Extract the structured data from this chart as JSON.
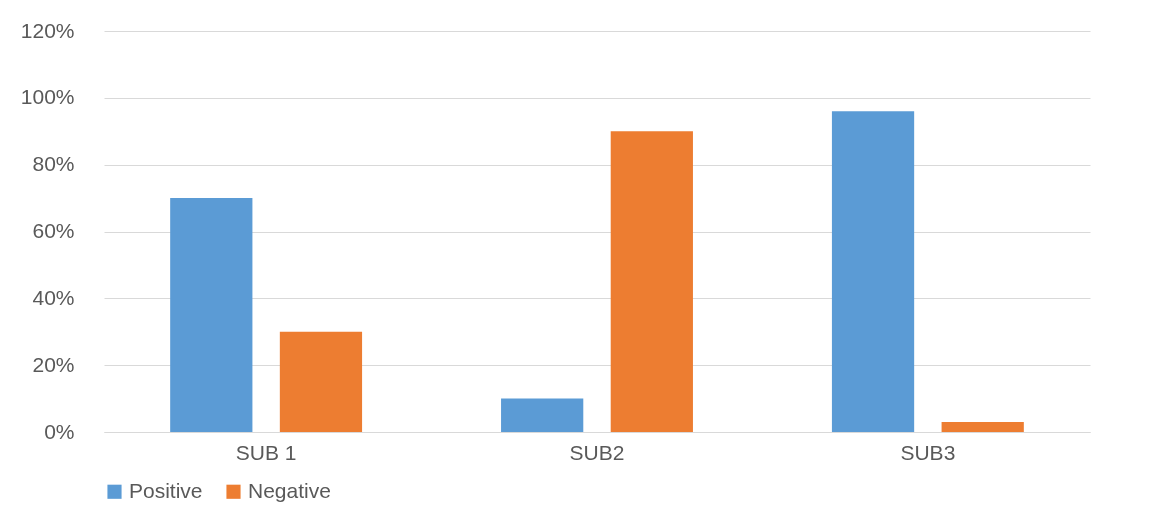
{
  "chart_data": {
    "type": "bar",
    "categories": [
      "SUB 1",
      "SUB2",
      "SUB3"
    ],
    "series": [
      {
        "name": "Positive",
        "color": "#5b9bd5",
        "values": [
          70,
          10,
          96
        ]
      },
      {
        "name": "Negative",
        "color": "#ed7d31",
        "values": [
          30,
          90,
          3
        ]
      }
    ],
    "ylim": [
      0,
      120
    ],
    "yticks": [
      {
        "value": 0,
        "label": "0%"
      },
      {
        "value": 20,
        "label": "20%"
      },
      {
        "value": 40,
        "label": "40%"
      },
      {
        "value": 60,
        "label": "60%"
      },
      {
        "value": 80,
        "label": "80%"
      },
      {
        "value": 100,
        "label": "100%"
      },
      {
        "value": 120,
        "label": "120%"
      }
    ],
    "grid": "y",
    "legend": "bottom"
  }
}
